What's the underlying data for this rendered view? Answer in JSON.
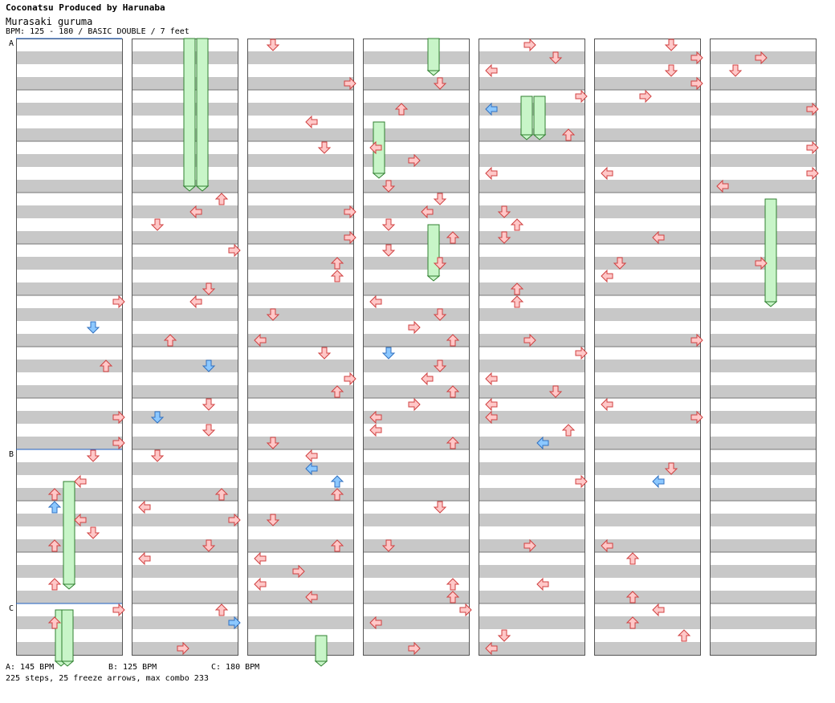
{
  "header": {
    "producer": "Coconatsu Produced by Harunaba",
    "title": "Murasaki guruma",
    "info": "BPM: 125 - 180 / BASIC DOUBLE / 7 feet"
  },
  "section_markers": [
    "A",
    "B",
    "C"
  ],
  "footer": {
    "bpm_a": "A: 145 BPM",
    "bpm_b": "B: 125 BPM",
    "bpm_c": "C: 180 BPM",
    "stats": "225 steps, 25 freeze arrows, max combo 233"
  },
  "colors": {
    "stripe": "#c8c8c8",
    "background": "#ffffff",
    "border": "#555555",
    "arrow_red_fill": "#ffc8c8",
    "arrow_red_stroke": "#d04040",
    "arrow_blue_fill": "#8cc8ff",
    "arrow_blue_stroke": "#3070c0",
    "freeze_fill": "#c8f5c8",
    "freeze_stroke": "#308030",
    "bpm_line": "#2060c0"
  },
  "chart_data": {
    "type": "table",
    "description": "Step chart: 7 columns, 12 measures per column, 8 beat-subdivisions per measure, 8 lanes",
    "lanes": [
      "P1-left",
      "P1-down",
      "P1-up",
      "P1-right",
      "P2-left",
      "P2-down",
      "P2-up",
      "P2-right"
    ],
    "columns": 7,
    "measures_per_column": 12,
    "steps": [
      [
        0,
        0.5,
        4,
        "red"
      ],
      [
        0,
        1.5,
        5,
        "red"
      ],
      [
        0,
        3.5,
        6,
        "red"
      ],
      [
        0,
        1,
        3,
        "red"
      ],
      [
        0,
        4,
        3,
        "red"
      ],
      [
        0,
        5,
        6,
        "red"
      ],
      [
        0,
        6,
        5,
        "red"
      ],
      [
        0,
        5,
        7,
        "red"
      ],
      [
        0,
        3,
        4,
        "red"
      ],
      [
        0,
        4.5,
        2,
        "red"
      ],
      [
        0,
        7.5,
        1,
        "red"
      ],
      [
        0,
        6.5,
        2,
        "red"
      ],
      [
        0,
        3.5,
        6,
        "red"
      ],
      [
        0,
        4.5,
        5,
        "red"
      ],
      [
        1,
        1,
        5,
        "blue"
      ],
      [
        1,
        2,
        6,
        "red"
      ],
      [
        1,
        3,
        5,
        "blue"
      ],
      [
        1,
        4,
        6,
        "red"
      ],
      [
        2,
        0.5,
        6,
        "red"
      ],
      [
        2,
        1,
        5,
        "red"
      ],
      [
        2,
        2,
        4,
        "red"
      ],
      [
        2,
        3,
        7,
        "red"
      ],
      [
        2,
        5,
        5,
        "red"
      ],
      [
        2,
        6,
        4,
        "red"
      ],
      [
        3,
        1,
        5,
        "red"
      ],
      [
        3,
        2,
        5,
        "red"
      ],
      [
        3,
        3,
        4,
        "red"
      ],
      [
        3,
        4,
        0,
        "red"
      ],
      [
        3,
        5,
        2,
        "red"
      ],
      [
        3,
        6,
        1,
        "red"
      ],
      [
        4,
        0.5,
        3,
        "red"
      ],
      [
        4,
        1,
        1,
        "red"
      ],
      [
        4,
        2,
        2,
        "red"
      ],
      [
        4,
        3,
        4,
        "red"
      ],
      [
        4,
        4,
        2,
        "red"
      ],
      [
        4,
        5,
        5,
        "red"
      ],
      [
        5,
        0,
        4,
        "red"
      ],
      [
        5,
        1,
        3,
        "red"
      ],
      [
        5,
        2,
        2,
        "red"
      ],
      [
        5,
        3,
        1,
        "red"
      ],
      [
        5,
        4,
        0,
        "red"
      ],
      [
        5,
        5,
        3,
        "red"
      ],
      [
        6,
        0,
        5,
        "red"
      ],
      [
        6,
        1,
        2,
        "blue"
      ],
      [
        6,
        2,
        4,
        "red"
      ],
      [
        6,
        3,
        3,
        "blue"
      ],
      [
        6,
        4,
        6,
        "red"
      ],
      [
        6,
        5,
        2,
        "blue"
      ]
    ]
  }
}
